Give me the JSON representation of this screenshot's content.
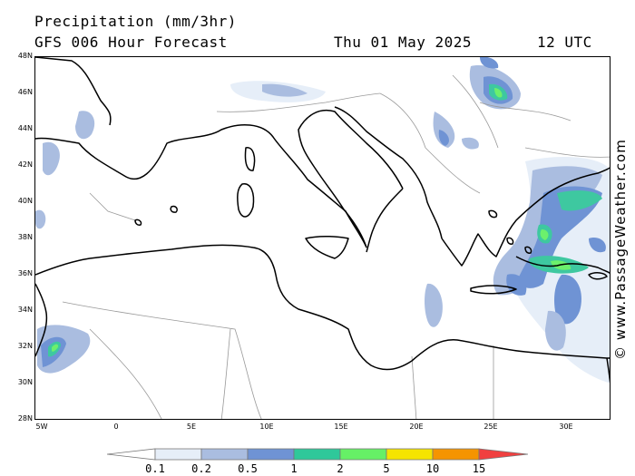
{
  "header": {
    "title": "Precipitation (mm/3hr)",
    "subtitle": "GFS 006 Hour Forecast",
    "date": "Thu 01 May 2025",
    "time": "12 UTC"
  },
  "map": {
    "lat_labels": [
      "48N",
      "46N",
      "44N",
      "42N",
      "40N",
      "38N",
      "36N",
      "34N",
      "32N",
      "30N",
      "28N"
    ],
    "lon_labels": [
      "5W",
      "0",
      "5E",
      "10E",
      "15E",
      "20E",
      "25E",
      "30E"
    ],
    "colors": {
      "land_outline": "#000000",
      "border": "#999999",
      "band_0_1": "#e6eef8",
      "band_0_2": "#aabde0",
      "band_0_5": "#6f93d4",
      "band_1": "#3ec8a0",
      "band_2": "#6cf06c"
    }
  },
  "credit": "© www.PassageWeather.com",
  "legend": {
    "labels": [
      "0.1",
      "0.2",
      "0.5",
      "1",
      "2",
      "5",
      "10",
      "15"
    ],
    "colors": [
      "#ffffff",
      "#e6eef8",
      "#aabde0",
      "#6f93d4",
      "#2fc89a",
      "#66f066",
      "#f5e400",
      "#f59400",
      "#f04040"
    ]
  }
}
